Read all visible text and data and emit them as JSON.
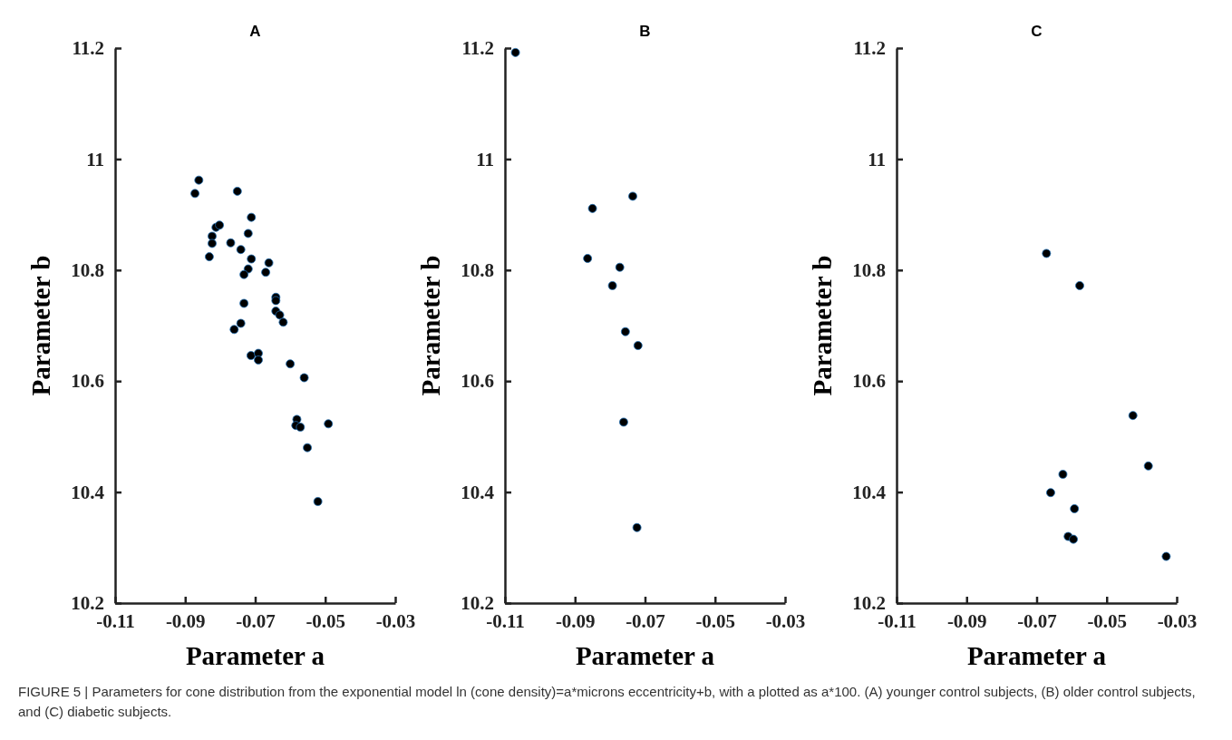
{
  "chart_data": [
    {
      "type": "scatter",
      "title": "A",
      "xlabel": "Parameter a",
      "ylabel": "Parameter b",
      "xlim": [
        -0.11,
        -0.03
      ],
      "ylim": [
        10.2,
        11.2
      ],
      "xticks": [
        -0.11,
        -0.09,
        -0.07,
        -0.05,
        -0.03
      ],
      "yticks": [
        10.2,
        10.4,
        10.6,
        10.8,
        11,
        11.2
      ],
      "grid": false,
      "marker": "circle",
      "series": [
        {
          "color": "#000000",
          "x": [
            -0.0861,
            -0.0872,
            -0.0751,
            -0.0711,
            -0.0812,
            -0.0802,
            -0.072,
            -0.0823,
            -0.0823,
            -0.077,
            -0.0741,
            -0.0831,
            -0.0711,
            -0.0661,
            -0.072,
            -0.0732,
            -0.067,
            -0.0732,
            -0.0641,
            -0.0641,
            -0.0641,
            -0.063,
            -0.062,
            -0.0741,
            -0.076,
            -0.0712,
            -0.0691,
            -0.0691,
            -0.06,
            -0.056,
            -0.0581,
            -0.0584,
            -0.0571,
            -0.0491,
            -0.0551,
            -0.0521
          ],
          "values": [
            10.962,
            10.938,
            10.942,
            10.895,
            10.877,
            10.881,
            10.866,
            10.861,
            10.848,
            10.849,
            10.837,
            10.824,
            10.82,
            10.813,
            10.802,
            10.792,
            10.796,
            10.74,
            10.751,
            10.745,
            10.726,
            10.719,
            10.706,
            10.704,
            10.693,
            10.646,
            10.65,
            10.638,
            10.631,
            10.606,
            10.531,
            10.52,
            10.517,
            10.523,
            10.48,
            10.383
          ]
        }
      ],
      "annotations": [
        "FIGURE 5 | Parameters for cone distribution from the exponential model ln (cone density)=a*microns eccentricity+b, with a plotted as a*100. (A) younger control subjects, (B) older control subjects, and (C) diabetic subjects."
      ]
    },
    {
      "type": "scatter",
      "title": "B",
      "xlabel": "Parameter a",
      "ylabel": "Parameter b",
      "xlim": [
        -0.11,
        -0.03
      ],
      "ylim": [
        10.2,
        11.2
      ],
      "xticks": [
        -0.11,
        -0.09,
        -0.07,
        -0.05,
        -0.03
      ],
      "yticks": [
        10.2,
        10.4,
        10.6,
        10.8,
        11,
        11.2
      ],
      "grid": false,
      "marker": "circle",
      "series": [
        {
          "color": "#000000",
          "x": [
            -0.107,
            -0.085,
            -0.0735,
            -0.0864,
            -0.0772,
            -0.0793,
            -0.0756,
            -0.072,
            -0.0761,
            -0.0723
          ],
          "values": [
            11.192,
            10.911,
            10.933,
            10.821,
            10.805,
            10.772,
            10.689,
            10.664,
            10.526,
            10.336
          ]
        }
      ]
    },
    {
      "type": "scatter",
      "title": "C",
      "xlabel": "Parameter a",
      "ylabel": "Parameter b",
      "xlim": [
        -0.11,
        -0.03
      ],
      "ylim": [
        10.2,
        11.2
      ],
      "xticks": [
        -0.11,
        -0.09,
        -0.07,
        -0.05,
        -0.03
      ],
      "yticks": [
        10.2,
        10.4,
        10.6,
        10.8,
        11,
        11.2
      ],
      "grid": false,
      "marker": "circle",
      "series": [
        {
          "color": "#000000",
          "x": [
            -0.0672,
            -0.0577,
            -0.0425,
            -0.0381,
            -0.0625,
            -0.066,
            -0.0592,
            -0.061,
            -0.0595,
            -0.033
          ],
          "values": [
            10.83,
            10.772,
            10.538,
            10.447,
            10.432,
            10.399,
            10.37,
            10.32,
            10.315,
            10.284
          ]
        }
      ]
    }
  ]
}
